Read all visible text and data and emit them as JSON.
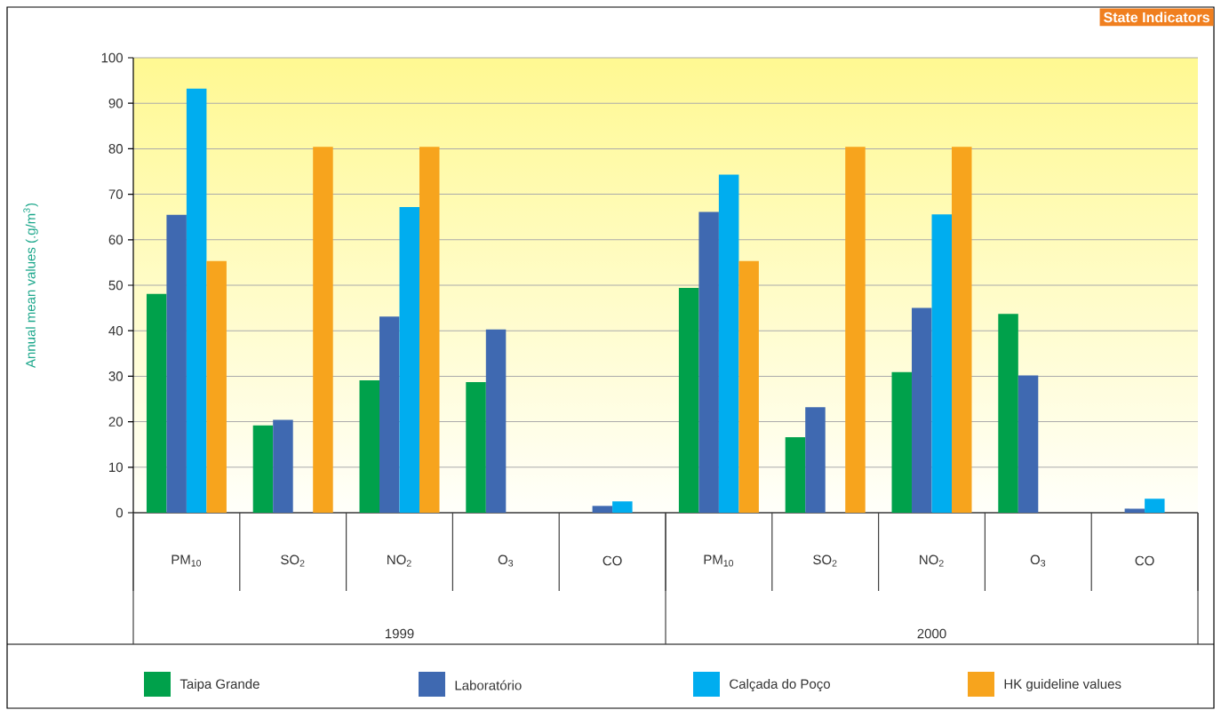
{
  "chart_data": {
    "type": "bar",
    "title": "State Indicators",
    "ylabel": "Annual mean values (.g/m$^{3}$)",
    "categories": [
      "PM$_{10}$",
      "SO$_{2}$",
      "NO$_{2}$",
      "O$_{3}$",
      "CO",
      "PM$_{10}$",
      "SO$_{2}$",
      "NO$_{2}$",
      "O$_{3}$",
      "CO"
    ],
    "series": [
      {
        "name": "Taipa Grande",
        "color": "#00a14b",
        "values": [
          48.1,
          19.2,
          29.1,
          28.7,
          null,
          49.4,
          16.6,
          30.9,
          43.7,
          null
        ]
      },
      {
        "name": "Laboratório",
        "color": "#3f69b1",
        "values": [
          65.5,
          20.4,
          43.1,
          40.3,
          1.5,
          66.1,
          23.2,
          45.0,
          30.2,
          0.9
        ]
      },
      {
        "name": "Calçada do Poço",
        "color": "#00adef",
        "values": [
          93.2,
          null,
          67.2,
          null,
          2.5,
          74.3,
          null,
          65.6,
          null,
          3.1
        ]
      },
      {
        "name": "HK guideline values",
        "color": "#f7a41d",
        "values": [
          55.3,
          80.4,
          80.4,
          null,
          null,
          55.3,
          80.4,
          80.4,
          null,
          null
        ]
      }
    ],
    "ylim": [
      0,
      100
    ],
    "yticks": [
      0,
      10,
      20,
      30,
      40,
      50,
      60,
      70,
      80,
      90,
      100
    ],
    "grid": "y",
    "legend": "bottom",
    "annotations": [
      "1999",
      "2000"
    ]
  }
}
